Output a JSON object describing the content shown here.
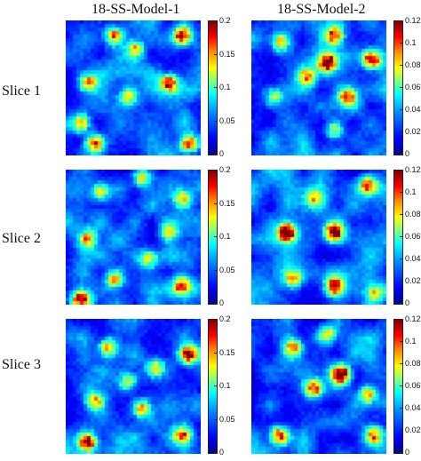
{
  "chart_data": {
    "type": "heatmap",
    "columns": [
      "18-SS-Model-1",
      "18-SS-Model-2"
    ],
    "rows": [
      "Slice 1",
      "Slice 2",
      "Slice 3"
    ],
    "colormap": "jet",
    "panels": [
      {
        "row": "Slice 1",
        "column": "18-SS-Model-1",
        "clim": [
          0,
          0.2
        ],
        "ticks": [
          "0",
          "0.05",
          "0.1",
          "0.15",
          "0.2"
        ],
        "hotspots": [
          [
            0.35,
            0.1,
            0.12
          ],
          [
            0.85,
            0.1,
            0.15
          ],
          [
            0.15,
            0.45,
            0.12
          ],
          [
            0.75,
            0.45,
            0.14
          ],
          [
            0.45,
            0.55,
            0.1
          ],
          [
            0.1,
            0.75,
            0.12
          ],
          [
            0.2,
            0.9,
            0.13
          ],
          [
            0.9,
            0.9,
            0.14
          ],
          [
            0.5,
            0.2,
            0.09
          ]
        ],
        "seed": 11
      },
      {
        "row": "Slice 1",
        "column": "18-SS-Model-2",
        "clim": [
          0,
          0.12
        ],
        "ticks": [
          "0",
          "0.02",
          "0.04",
          "0.06",
          "0.08",
          "0.1",
          "0.12"
        ],
        "hotspots": [
          [
            0.55,
            0.3,
            0.11
          ],
          [
            0.6,
            0.1,
            0.09
          ],
          [
            0.88,
            0.28,
            0.1
          ],
          [
            0.2,
            0.15,
            0.06
          ],
          [
            0.7,
            0.55,
            0.08
          ],
          [
            0.4,
            0.4,
            0.06
          ],
          [
            0.15,
            0.55,
            0.05
          ],
          [
            0.6,
            0.8,
            0.05
          ]
        ],
        "seed": 23
      },
      {
        "row": "Slice 2",
        "column": "18-SS-Model-1",
        "clim": [
          0,
          0.2
        ],
        "ticks": [
          "0",
          "0.05",
          "0.1",
          "0.15",
          "0.2"
        ],
        "hotspots": [
          [
            0.25,
            0.15,
            0.1
          ],
          [
            0.55,
            0.05,
            0.1
          ],
          [
            0.85,
            0.2,
            0.09
          ],
          [
            0.15,
            0.5,
            0.11
          ],
          [
            0.75,
            0.45,
            0.1
          ],
          [
            0.35,
            0.8,
            0.11
          ],
          [
            0.1,
            0.95,
            0.16
          ],
          [
            0.85,
            0.85,
            0.13
          ],
          [
            0.6,
            0.65,
            0.09
          ]
        ],
        "seed": 37
      },
      {
        "row": "Slice 2",
        "column": "18-SS-Model-2",
        "clim": [
          0,
          0.12
        ],
        "ticks": [
          "0",
          "0.02",
          "0.04",
          "0.06",
          "0.08",
          "0.1",
          "0.12"
        ],
        "hotspots": [
          [
            0.25,
            0.45,
            0.12
          ],
          [
            0.6,
            0.45,
            0.11
          ],
          [
            0.6,
            0.85,
            0.09
          ],
          [
            0.85,
            0.1,
            0.07
          ],
          [
            0.3,
            0.8,
            0.06
          ],
          [
            0.9,
            0.9,
            0.05
          ],
          [
            0.45,
            0.2,
            0.05
          ]
        ],
        "seed": 41
      },
      {
        "row": "Slice 3",
        "column": "18-SS-Model-1",
        "clim": [
          0,
          0.2
        ],
        "ticks": [
          "0",
          "0.05",
          "0.1",
          "0.15",
          "0.2"
        ],
        "hotspots": [
          [
            0.3,
            0.2,
            0.12
          ],
          [
            0.65,
            0.35,
            0.1
          ],
          [
            0.9,
            0.25,
            0.16
          ],
          [
            0.2,
            0.6,
            0.1
          ],
          [
            0.55,
            0.65,
            0.11
          ],
          [
            0.15,
            0.9,
            0.15
          ],
          [
            0.85,
            0.85,
            0.13
          ],
          [
            0.45,
            0.45,
            0.09
          ]
        ],
        "seed": 53
      },
      {
        "row": "Slice 3",
        "column": "18-SS-Model-2",
        "clim": [
          0,
          0.12
        ],
        "ticks": [
          "0",
          "0.02",
          "0.04",
          "0.06",
          "0.08",
          "0.1",
          "0.12"
        ],
        "hotspots": [
          [
            0.65,
            0.4,
            0.12
          ],
          [
            0.45,
            0.5,
            0.09
          ],
          [
            0.3,
            0.2,
            0.07
          ],
          [
            0.85,
            0.55,
            0.07
          ],
          [
            0.2,
            0.85,
            0.09
          ],
          [
            0.9,
            0.85,
            0.06
          ],
          [
            0.55,
            0.1,
            0.05
          ]
        ],
        "seed": 67
      }
    ]
  }
}
